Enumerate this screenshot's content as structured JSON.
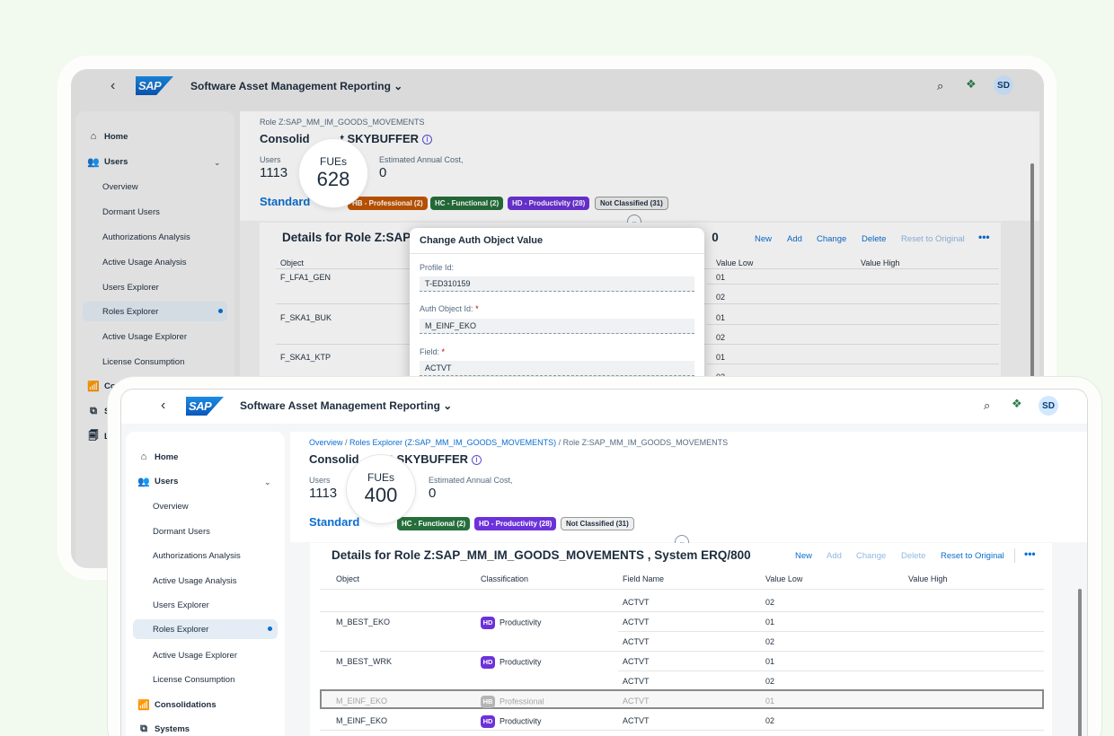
{
  "app": {
    "title": "Software Asset Management Reporting",
    "avatar": "SD",
    "logo": "SAP"
  },
  "sidebar": {
    "home": "Home",
    "users": "Users",
    "sub": [
      "Overview",
      "Dormant Users",
      "Authorizations Analysis",
      "Active Usage Analysis",
      "Users Explorer",
      "Roles Explorer",
      "Active Usage Explorer",
      "License Consumption"
    ],
    "consolidations": "Consolidations",
    "systems": "Systems",
    "back_partial": {
      "consolidations": "Co",
      "systems": "S",
      "licenses": "L"
    }
  },
  "back": {
    "breadcrumb": "Role Z:SAP_MM_IM_GOODS_MOVEMENTS",
    "role_title_a": "Consolid",
    "role_title_b": "t SKYBUFFER",
    "users_label": "Users",
    "users_value": "1113",
    "fues_label": "FUEs",
    "fues_value": "628",
    "cost_label": "Estimated Annual Cost,",
    "cost_value": "0",
    "standard": "Standard",
    "tags": [
      "HB - Professional (2)",
      "HC - Functional (2)",
      "HD - Productivity (28)",
      "Not Classified (31)"
    ],
    "details_a": "Details for Role Z:SAP",
    "details_b": "0",
    "toolbar": [
      "New",
      "Add",
      "Change",
      "Delete",
      "Reset to Original"
    ],
    "columns": {
      "object": "Object",
      "value_low": "Value Low",
      "value_high": "Value High"
    },
    "rows": [
      {
        "object": "F_LFA1_GEN",
        "low": "01"
      },
      {
        "object": "",
        "low": "02"
      },
      {
        "object": "F_SKA1_BUK",
        "low": "01"
      },
      {
        "object": "",
        "low": "02"
      },
      {
        "object": "F_SKA1_KTP",
        "low": "01"
      },
      {
        "object": "",
        "low": "02"
      }
    ]
  },
  "dialog": {
    "title": "Change Auth Object Value",
    "profile_label": "Profile Id:",
    "profile_value": "T-ED310159",
    "auth_label": "Auth Object Id:",
    "auth_value": "M_EINF_EKO",
    "field_label": "Field:",
    "field_value": "ACTVT"
  },
  "front": {
    "breadcrumb_links": [
      "Overview",
      "Roles Explorer (Z:SAP_MM_IM_GOODS_MOVEMENTS)"
    ],
    "breadcrumb_current": "Role Z:SAP_MM_IM_GOODS_MOVEMENTS",
    "role_title_a": "Consolid",
    "role_title_b": "t SKYBUFFER",
    "users_label": "Users",
    "users_value": "1113",
    "fues_label": "FUEs",
    "fues_value": "400",
    "cost_label": "Estimated Annual Cost,",
    "cost_value": "0",
    "standard": "Standard",
    "tags": [
      "HC - Functional (2)",
      "HD - Productivity (28)",
      "Not Classified (31)"
    ],
    "details_title": "Details for Role Z:SAP_MM_IM_GOODS_MOVEMENTS , System ERQ/800",
    "toolbar": [
      "New",
      "Add",
      "Change",
      "Delete",
      "Reset to Original"
    ],
    "columns": {
      "object": "Object",
      "classification": "Classification",
      "field": "Field Name",
      "value_low": "Value Low",
      "value_high": "Value High"
    },
    "rows": [
      {
        "object": "",
        "badge": "",
        "cls": "",
        "field": "ACTVT",
        "low": "02"
      },
      {
        "object": "M_BEST_EKO",
        "badge": "HD",
        "cls": "Productivity",
        "field": "ACTVT",
        "low": "01"
      },
      {
        "object": "",
        "badge": "",
        "cls": "",
        "field": "ACTVT",
        "low": "02"
      },
      {
        "object": "M_BEST_WRK",
        "badge": "HD",
        "cls": "Productivity",
        "field": "ACTVT",
        "low": "01"
      },
      {
        "object": "",
        "badge": "",
        "cls": "",
        "field": "ACTVT",
        "low": "02"
      },
      {
        "object": "M_EINF_EKO",
        "badge": "HB",
        "cls": "Professional",
        "field": "ACTVT",
        "low": "01"
      },
      {
        "object": "M_EINF_EKO",
        "badge": "HD",
        "cls": "Productivity",
        "field": "ACTVT",
        "low": "02"
      }
    ]
  },
  "icons": {
    "back": "chevron-left-icon",
    "search": "search-icon",
    "assist": "joule-icon",
    "more": "overflow-icon"
  },
  "colors": {
    "brand": "#0a6ed1",
    "professional": "#c35500",
    "functional": "#256f3a",
    "productivity": "#6c32d9"
  }
}
